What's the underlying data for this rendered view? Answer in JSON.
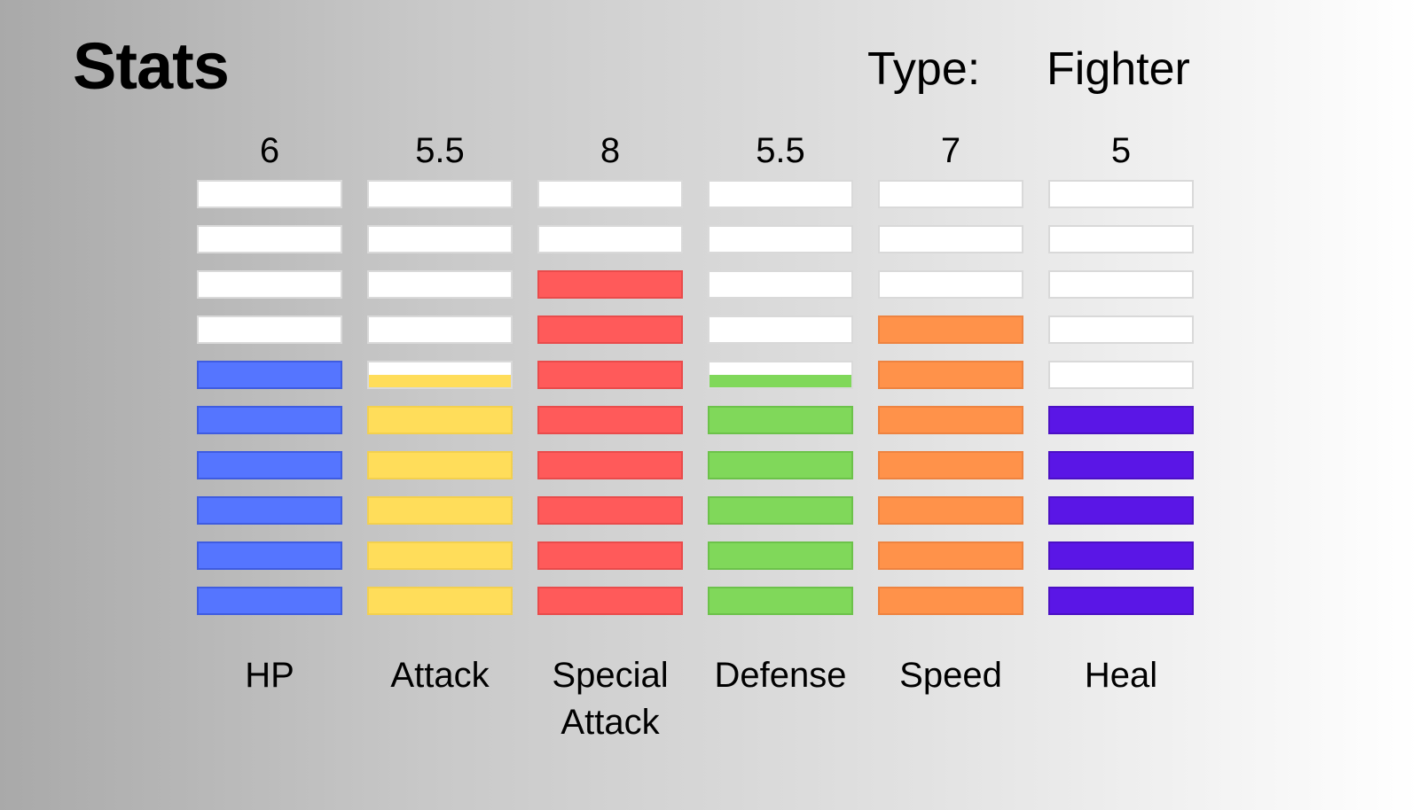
{
  "header": {
    "title": "Stats",
    "type_label": "Type:",
    "type_value": "Fighter"
  },
  "chart_data": {
    "type": "bar",
    "segments_per_bar": 10,
    "categories": [
      "HP",
      "Attack",
      "Special Attack",
      "Defense",
      "Speed",
      "Heal"
    ],
    "values": [
      6,
      5.5,
      8,
      5.5,
      7,
      5
    ],
    "value_labels": [
      "6",
      "5.5",
      "8",
      "5.5",
      "7",
      "5"
    ],
    "category_labels": [
      "HP",
      "Attack",
      "Special\nAttack",
      "Defense",
      "Speed",
      "Heal"
    ],
    "colors": [
      "#5575ff",
      "#ffdd5a",
      "#ff5a5a",
      "#80d85a",
      "#ff924a",
      "#5a16e6"
    ],
    "border_colors": [
      "#3f5ce0",
      "#f3d04e",
      "#e94b4b",
      "#6cc24a",
      "#ee8340",
      "#4b10c4"
    ],
    "ylim": [
      0,
      10
    ]
  }
}
